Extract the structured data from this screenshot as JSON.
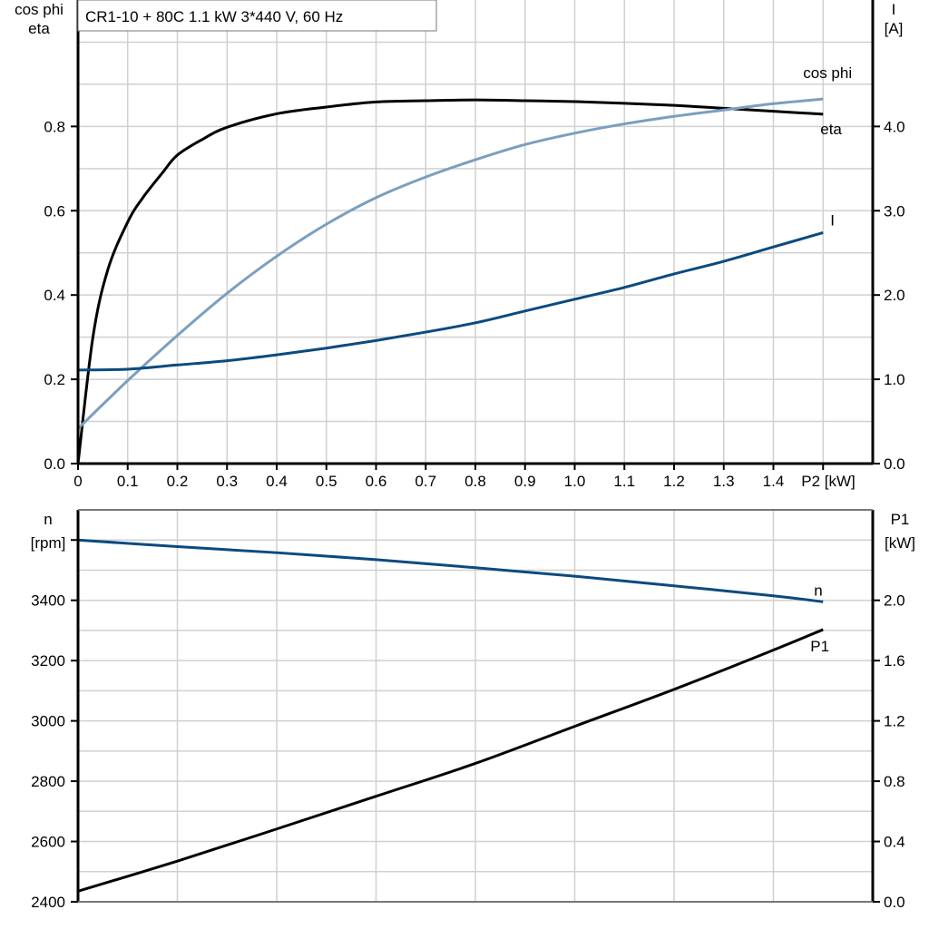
{
  "title": "CR1-10 + 80C   1.1 kW   3*440 V, 60 Hz",
  "colors": {
    "eta": "#000000",
    "cos_phi": "#7a9fc0",
    "I": "#0b4a80",
    "n": "#0b4a80",
    "P1": "#000000",
    "grid": "#d0d0d0"
  },
  "chart_data": [
    {
      "type": "line",
      "xlabel": "P2 [kW]",
      "ylabel_left": [
        "cos phi",
        "eta"
      ],
      "ylabel_right": [
        "I",
        "[A]"
      ],
      "xlim": [
        0,
        1.6
      ],
      "ylim_left": [
        0,
        1.1
      ],
      "ylim_right": [
        0,
        5.5
      ],
      "x_ticks": [
        "0",
        "0.1",
        "0.2",
        "0.3",
        "0.4",
        "0.5",
        "0.6",
        "0.7",
        "0.8",
        "0.9",
        "1.0",
        "1.1",
        "1.2",
        "1.3",
        "1.4"
      ],
      "y_ticks_left": [
        "0.0",
        "0.2",
        "0.4",
        "0.6",
        "0.8"
      ],
      "y_ticks_right": [
        "0.0",
        "1.0",
        "2.0",
        "3.0",
        "4.0"
      ],
      "grid": true,
      "series": [
        {
          "name": "eta",
          "axis": "left",
          "x": [
            0,
            0.03,
            0.06,
            0.1,
            0.13,
            0.17,
            0.2,
            0.25,
            0.3,
            0.4,
            0.5,
            0.6,
            0.7,
            0.8,
            0.9,
            1.0,
            1.1,
            1.2,
            1.3,
            1.4,
            1.5
          ],
          "y": [
            0,
            0.3,
            0.46,
            0.573,
            0.63,
            0.69,
            0.732,
            0.769,
            0.798,
            0.83,
            0.846,
            0.858,
            0.861,
            0.863,
            0.861,
            0.859,
            0.855,
            0.85,
            0.843,
            0.836,
            0.829
          ]
        },
        {
          "name": "cos phi",
          "axis": "left",
          "x": [
            0,
            0.1,
            0.2,
            0.3,
            0.4,
            0.5,
            0.6,
            0.7,
            0.8,
            0.9,
            1.0,
            1.1,
            1.2,
            1.3,
            1.4,
            1.5
          ],
          "y": [
            0.083,
            0.197,
            0.304,
            0.404,
            0.492,
            0.568,
            0.631,
            0.68,
            0.721,
            0.757,
            0.784,
            0.806,
            0.824,
            0.839,
            0.854,
            0.865
          ]
        },
        {
          "name": "I",
          "axis": "right",
          "x": [
            0,
            0.1,
            0.2,
            0.3,
            0.4,
            0.5,
            0.6,
            0.7,
            0.8,
            0.9,
            1.0,
            1.1,
            1.2,
            1.3,
            1.4,
            1.5
          ],
          "y": [
            1.11,
            1.12,
            1.17,
            1.22,
            1.29,
            1.37,
            1.46,
            1.56,
            1.67,
            1.81,
            1.95,
            2.09,
            2.25,
            2.4,
            2.57,
            2.74
          ]
        }
      ]
    },
    {
      "type": "line",
      "ylabel_left": [
        "n",
        "[rpm]"
      ],
      "ylabel_right": [
        "P1",
        "[kW]"
      ],
      "xlim": [
        0,
        1.6
      ],
      "ylim_left": [
        2400,
        3700
      ],
      "ylim_right": [
        0,
        2.6
      ],
      "y_ticks_left": [
        "2400",
        "2600",
        "2800",
        "3000",
        "3200",
        "3400"
      ],
      "y_ticks_right": [
        "0.0",
        "0.4",
        "0.8",
        "1.2",
        "1.6",
        "2.0"
      ],
      "grid": true,
      "series": [
        {
          "name": "n",
          "axis": "left",
          "x": [
            0,
            0.2,
            0.4,
            0.6,
            0.8,
            1.0,
            1.2,
            1.4,
            1.5
          ],
          "y": [
            3600,
            3578,
            3558,
            3535,
            3508,
            3480,
            3448,
            3415,
            3395
          ]
        },
        {
          "name": "P1",
          "axis": "right",
          "x": [
            0,
            0.2,
            0.4,
            0.6,
            0.8,
            1.0,
            1.2,
            1.4,
            1.5
          ],
          "y": [
            0.07,
            0.27,
            0.483,
            0.7,
            0.918,
            1.164,
            1.409,
            1.67,
            1.806
          ]
        }
      ]
    }
  ]
}
